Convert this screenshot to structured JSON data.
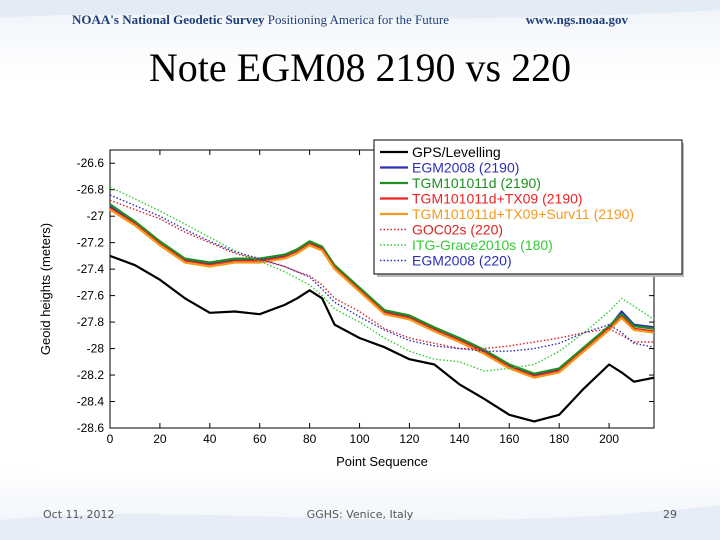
{
  "header": {
    "org": "NOAA's National Geodetic Survey",
    "tagline": "Positioning America for the Future",
    "url": "www.ngs.noaa.gov"
  },
  "slide": {
    "title": "Note EGM08 2190 vs 220"
  },
  "footer": {
    "date": "Oct 11, 2012",
    "conference": "GGHS:  Venice, Italy",
    "page": "29"
  },
  "chart_data": {
    "type": "line",
    "title": "",
    "xlabel": "Point Sequence",
    "ylabel": "Geoid heights (meters)",
    "xlim": [
      0,
      218
    ],
    "ylim": [
      -28.6,
      -26.5
    ],
    "xticks": [
      0,
      20,
      40,
      60,
      80,
      100,
      120,
      140,
      160,
      180,
      200
    ],
    "yticks": [
      -26.6,
      -26.8,
      -27,
      -27.2,
      -27.4,
      -27.6,
      -27.8,
      -28,
      -28.2,
      -28.4,
      -28.6
    ],
    "ytick_labels": [
      "-26.6",
      "-26.8",
      "-27",
      "-27.2",
      "-27.4",
      "-27.6",
      "-27.8",
      "-28",
      "-28.2",
      "-28.4",
      "-28.6"
    ],
    "legend_position": "top-right",
    "x": [
      0,
      10,
      20,
      30,
      40,
      50,
      60,
      70,
      75,
      80,
      85,
      90,
      100,
      110,
      120,
      130,
      140,
      150,
      160,
      170,
      180,
      190,
      200,
      205,
      210,
      218
    ],
    "series": [
      {
        "name": "GPS/Levelling",
        "color": "#000000",
        "dash": "solid",
        "width": 2.2,
        "values": [
          -27.3,
          -27.37,
          -27.48,
          -27.62,
          -27.73,
          -27.72,
          -27.74,
          -27.67,
          -27.62,
          -27.56,
          -27.62,
          -27.82,
          -27.92,
          -27.99,
          -28.08,
          -28.12,
          -28.27,
          -28.38,
          -28.5,
          -28.55,
          -28.5,
          -28.3,
          -28.12,
          -28.18,
          -28.25,
          -28.22
        ]
      },
      {
        "name": "EGM2008 (2190)",
        "color": "#2b2fb8",
        "dash": "solid",
        "width": 2.2,
        "values": [
          -26.93,
          -27.05,
          -27.2,
          -27.33,
          -27.36,
          -27.33,
          -27.33,
          -27.3,
          -27.26,
          -27.2,
          -27.24,
          -27.38,
          -27.55,
          -27.72,
          -27.76,
          -27.85,
          -27.93,
          -28.02,
          -28.13,
          -28.2,
          -28.16,
          -28.0,
          -27.84,
          -27.72,
          -27.82,
          -27.84
        ]
      },
      {
        "name": "TGM101011d (2190)",
        "color": "#1f8f1f",
        "dash": "solid",
        "width": 2.2,
        "values": [
          -26.91,
          -27.04,
          -27.19,
          -27.32,
          -27.35,
          -27.32,
          -27.32,
          -27.29,
          -27.25,
          -27.19,
          -27.23,
          -27.37,
          -27.54,
          -27.71,
          -27.75,
          -27.84,
          -27.92,
          -28.01,
          -28.12,
          -28.19,
          -28.15,
          -27.99,
          -27.83,
          -27.74,
          -27.83,
          -27.85
        ]
      },
      {
        "name": "TGM101011d+TX09 (2190)",
        "color": "#ee2222",
        "dash": "solid",
        "width": 2.2,
        "values": [
          -26.94,
          -27.06,
          -27.21,
          -27.34,
          -27.37,
          -27.34,
          -27.34,
          -27.31,
          -27.27,
          -27.21,
          -27.25,
          -27.39,
          -27.56,
          -27.73,
          -27.77,
          -27.86,
          -27.94,
          -28.03,
          -28.14,
          -28.21,
          -28.17,
          -28.01,
          -27.85,
          -27.76,
          -27.85,
          -27.87
        ]
      },
      {
        "name": "TGM101011d+TX09+Surv11 (2190)",
        "color": "#f59a1e",
        "dash": "solid",
        "width": 2.2,
        "values": [
          -26.95,
          -27.07,
          -27.22,
          -27.35,
          -27.38,
          -27.35,
          -27.35,
          -27.32,
          -27.28,
          -27.22,
          -27.26,
          -27.4,
          -27.57,
          -27.74,
          -27.78,
          -27.87,
          -27.95,
          -28.04,
          -28.15,
          -28.22,
          -28.18,
          -28.02,
          -27.86,
          -27.77,
          -27.86,
          -27.88
        ]
      },
      {
        "name": "GOC02s (220)",
        "color": "#dd2222",
        "dash": "dot",
        "width": 1.4,
        "values": [
          -26.88,
          -26.95,
          -27.02,
          -27.12,
          -27.2,
          -27.28,
          -27.33,
          -27.38,
          -27.42,
          -27.45,
          -27.52,
          -27.62,
          -27.72,
          -27.85,
          -27.92,
          -27.96,
          -28.0,
          -28.0,
          -27.98,
          -27.95,
          -27.92,
          -27.88,
          -27.85,
          -27.9,
          -27.95,
          -27.95
        ]
      },
      {
        "name": "ITG-Grace2010s (180)",
        "color": "#33cc33",
        "dash": "dot",
        "width": 1.4,
        "values": [
          -26.78,
          -26.87,
          -26.96,
          -27.06,
          -27.16,
          -27.26,
          -27.34,
          -27.42,
          -27.47,
          -27.52,
          -27.6,
          -27.7,
          -27.8,
          -27.92,
          -28.02,
          -28.08,
          -28.1,
          -28.17,
          -28.15,
          -28.12,
          -28.02,
          -27.88,
          -27.72,
          -27.62,
          -27.68,
          -27.78
        ]
      },
      {
        "name": "EGM2008 (220)",
        "color": "#2b2fb8",
        "dash": "dot",
        "width": 1.4,
        "values": [
          -26.84,
          -26.92,
          -27.0,
          -27.1,
          -27.19,
          -27.27,
          -27.32,
          -27.38,
          -27.42,
          -27.46,
          -27.55,
          -27.65,
          -27.76,
          -27.86,
          -27.94,
          -27.98,
          -28.0,
          -28.02,
          -28.02,
          -28.0,
          -27.96,
          -27.88,
          -27.82,
          -27.88,
          -27.96,
          -27.99
        ]
      }
    ]
  }
}
